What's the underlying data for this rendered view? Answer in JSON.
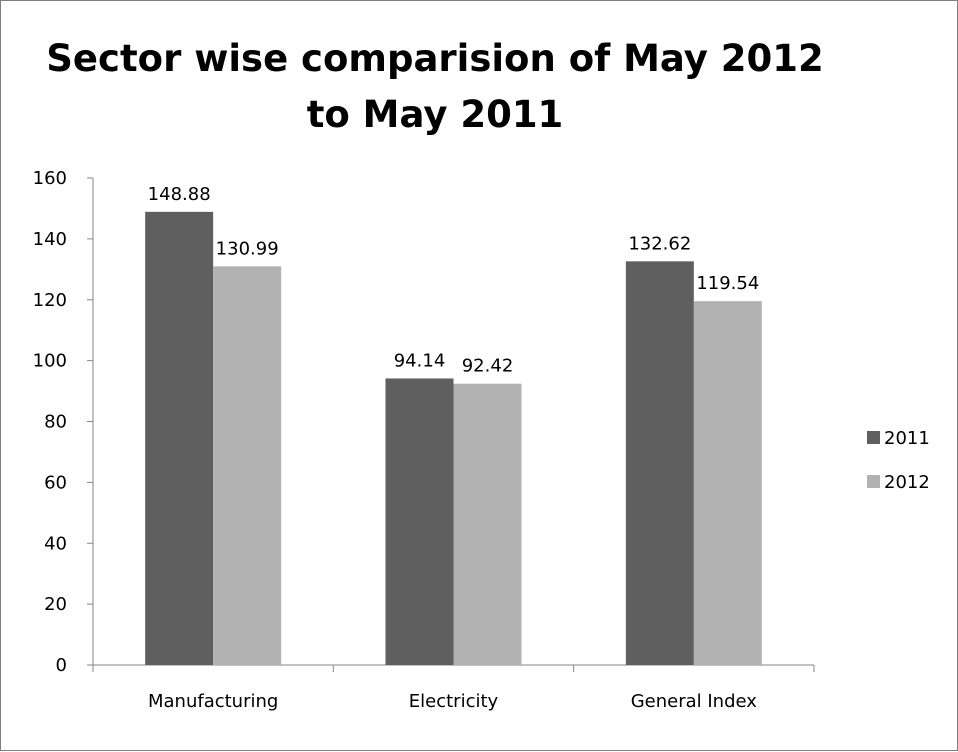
{
  "chart_data": {
    "type": "bar",
    "title_lines": [
      "Sector wise comparision of May 2012",
      "to May 2011"
    ],
    "categories": [
      "Manufacturing",
      "Electricity",
      "General Index"
    ],
    "series": [
      {
        "name": "2011",
        "values": [
          148.88,
          94.14,
          132.62
        ],
        "color": "#5f5f5f"
      },
      {
        "name": "2012",
        "values": [
          130.99,
          92.42,
          119.54
        ],
        "color": "#b2b2b2"
      }
    ],
    "data_labels": [
      [
        "148.88",
        "94.14",
        "132.62"
      ],
      [
        "130.99",
        "92.42",
        "119.54"
      ]
    ],
    "ylim": [
      0,
      160
    ],
    "yticks": [
      0,
      20,
      40,
      60,
      80,
      100,
      120,
      140,
      160
    ],
    "grid": false,
    "legend_position": "right"
  }
}
